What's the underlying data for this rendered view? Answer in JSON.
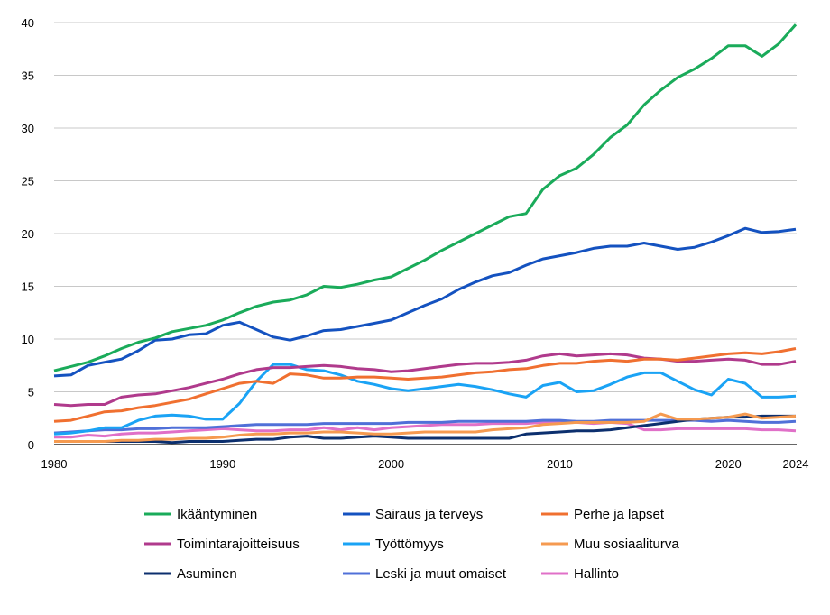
{
  "chart_data": {
    "type": "line",
    "title": "",
    "xlabel": "",
    "ylabel": "",
    "xlim": [
      1980,
      2024
    ],
    "ylim": [
      0,
      40
    ],
    "x_ticks": [
      "1980",
      "1990",
      "2000",
      "2010",
      "2020",
      "2024"
    ],
    "y_ticks": [
      "0",
      "5",
      "10",
      "15",
      "20",
      "25",
      "30",
      "35",
      "40"
    ],
    "grid": "horizontal",
    "legend_placement": "bottom",
    "x": [
      1980,
      1981,
      1982,
      1983,
      1984,
      1985,
      1986,
      1987,
      1988,
      1989,
      1990,
      1991,
      1992,
      1993,
      1994,
      1995,
      1996,
      1997,
      1998,
      1999,
      2000,
      2001,
      2002,
      2003,
      2004,
      2005,
      2006,
      2007,
      2008,
      2009,
      2010,
      2011,
      2012,
      2013,
      2014,
      2015,
      2016,
      2017,
      2018,
      2019,
      2020,
      2021,
      2022,
      2023,
      2024
    ],
    "series": [
      {
        "name": "Ikääntyminen",
        "color": "#1aab5a",
        "values": [
          7.0,
          7.4,
          7.8,
          8.4,
          9.1,
          9.7,
          10.1,
          10.7,
          11.0,
          11.3,
          11.8,
          12.5,
          13.1,
          13.5,
          13.7,
          14.2,
          15.0,
          14.9,
          15.2,
          15.6,
          15.9,
          16.7,
          17.5,
          18.4,
          19.2,
          20.0,
          20.8,
          21.6,
          21.9,
          24.2,
          25.5,
          26.2,
          27.5,
          29.1,
          30.3,
          32.2,
          33.6,
          34.8,
          35.6,
          36.6,
          37.8,
          37.8,
          36.8,
          38.0,
          39.8
        ]
      },
      {
        "name": "Sairaus ja terveys",
        "color": "#1452c0",
        "values": [
          6.5,
          6.6,
          7.5,
          7.8,
          8.1,
          8.9,
          9.9,
          10.0,
          10.4,
          10.5,
          11.3,
          11.6,
          10.9,
          10.2,
          9.9,
          10.3,
          10.8,
          10.9,
          11.2,
          11.5,
          11.8,
          12.5,
          13.2,
          13.8,
          14.7,
          15.4,
          16.0,
          16.3,
          17.0,
          17.6,
          17.9,
          18.2,
          18.6,
          18.8,
          18.8,
          19.1,
          18.8,
          18.5,
          18.7,
          19.2,
          19.8,
          20.5,
          20.1,
          20.2,
          20.4
        ]
      },
      {
        "name": "Perhe ja lapset",
        "color": "#f07030",
        "values": [
          2.2,
          2.3,
          2.7,
          3.1,
          3.2,
          3.5,
          3.7,
          4.0,
          4.3,
          4.8,
          5.3,
          5.8,
          6.0,
          5.8,
          6.7,
          6.6,
          6.3,
          6.3,
          6.4,
          6.4,
          6.3,
          6.2,
          6.3,
          6.4,
          6.6,
          6.8,
          6.9,
          7.1,
          7.2,
          7.5,
          7.7,
          7.7,
          7.9,
          8.0,
          7.9,
          8.1,
          8.1,
          8.0,
          8.2,
          8.4,
          8.6,
          8.7,
          8.6,
          8.8,
          9.1
        ]
      },
      {
        "name": "Toimintarajoitteisuus",
        "color": "#b03a8c",
        "values": [
          3.8,
          3.7,
          3.8,
          3.8,
          4.5,
          4.7,
          4.8,
          5.1,
          5.4,
          5.8,
          6.2,
          6.7,
          7.1,
          7.3,
          7.3,
          7.4,
          7.5,
          7.4,
          7.2,
          7.1,
          6.9,
          7.0,
          7.2,
          7.4,
          7.6,
          7.7,
          7.7,
          7.8,
          8.0,
          8.4,
          8.6,
          8.4,
          8.5,
          8.6,
          8.5,
          8.2,
          8.1,
          7.9,
          7.9,
          8.0,
          8.1,
          8.0,
          7.6,
          7.6,
          7.9
        ]
      },
      {
        "name": "Työttömyys",
        "color": "#1aa3f5",
        "values": [
          1.0,
          1.1,
          1.3,
          1.6,
          1.6,
          2.3,
          2.7,
          2.8,
          2.7,
          2.4,
          2.4,
          3.9,
          6.0,
          7.6,
          7.6,
          7.1,
          7.0,
          6.6,
          6.0,
          5.7,
          5.3,
          5.1,
          5.3,
          5.5,
          5.7,
          5.5,
          5.2,
          4.8,
          4.5,
          5.6,
          5.9,
          5.0,
          5.1,
          5.7,
          6.4,
          6.8,
          6.8,
          6.0,
          5.2,
          4.7,
          6.2,
          5.8,
          4.5,
          4.5,
          4.6
        ]
      },
      {
        "name": "Muu sosiaaliturva",
        "color": "#f59a50",
        "values": [
          0.3,
          0.3,
          0.3,
          0.3,
          0.4,
          0.4,
          0.5,
          0.5,
          0.6,
          0.6,
          0.7,
          0.9,
          1.0,
          1.0,
          1.1,
          1.1,
          1.2,
          1.2,
          1.1,
          1.0,
          1.0,
          1.1,
          1.2,
          1.2,
          1.2,
          1.2,
          1.4,
          1.5,
          1.6,
          1.9,
          2.0,
          2.1,
          2.1,
          2.1,
          2.1,
          2.2,
          2.9,
          2.4,
          2.4,
          2.5,
          2.6,
          2.9,
          2.5,
          2.6,
          2.7
        ]
      },
      {
        "name": "Asuminen",
        "color": "#0c2f6e",
        "values": [
          0.3,
          0.3,
          0.3,
          0.3,
          0.3,
          0.3,
          0.3,
          0.2,
          0.3,
          0.3,
          0.3,
          0.4,
          0.5,
          0.5,
          0.7,
          0.8,
          0.6,
          0.6,
          0.7,
          0.8,
          0.7,
          0.6,
          0.6,
          0.6,
          0.6,
          0.6,
          0.6,
          0.6,
          1.0,
          1.1,
          1.2,
          1.3,
          1.3,
          1.4,
          1.6,
          1.8,
          2.0,
          2.2,
          2.4,
          2.5,
          2.6,
          2.6,
          2.7,
          2.7,
          2.7
        ]
      },
      {
        "name": "Leski ja muut omaiset",
        "color": "#5070d8",
        "values": [
          1.1,
          1.2,
          1.3,
          1.4,
          1.4,
          1.5,
          1.5,
          1.6,
          1.6,
          1.6,
          1.7,
          1.8,
          1.9,
          1.9,
          1.9,
          1.9,
          2.0,
          2.0,
          2.0,
          2.0,
          2.0,
          2.1,
          2.1,
          2.1,
          2.2,
          2.2,
          2.2,
          2.2,
          2.2,
          2.3,
          2.3,
          2.2,
          2.2,
          2.3,
          2.3,
          2.3,
          2.3,
          2.3,
          2.3,
          2.2,
          2.3,
          2.2,
          2.1,
          2.1,
          2.2
        ]
      },
      {
        "name": "Hallinto",
        "color": "#e070c8",
        "values": [
          0.7,
          0.7,
          0.9,
          0.8,
          1.0,
          1.1,
          1.1,
          1.2,
          1.3,
          1.4,
          1.5,
          1.4,
          1.3,
          1.3,
          1.4,
          1.4,
          1.6,
          1.4,
          1.6,
          1.4,
          1.6,
          1.7,
          1.8,
          1.9,
          1.9,
          1.9,
          2.0,
          2.0,
          2.0,
          2.1,
          2.2,
          2.1,
          2.0,
          2.1,
          2.0,
          1.4,
          1.4,
          1.5,
          1.5,
          1.5,
          1.5,
          1.5,
          1.4,
          1.4,
          1.3
        ]
      }
    ]
  }
}
